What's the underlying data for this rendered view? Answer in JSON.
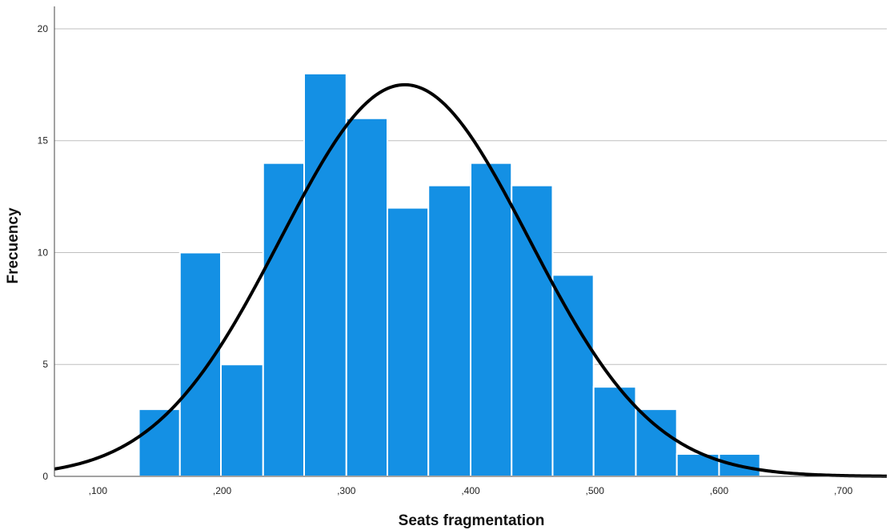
{
  "chart_data": {
    "type": "bar",
    "subtype": "histogram-with-normal-curve",
    "title": "",
    "xlabel": "Seats fragmentation",
    "ylabel": "Frecuency",
    "xlim": [
      0.065,
      0.735
    ],
    "ylim": [
      0,
      21
    ],
    "x_ticks": [
      {
        "value": 0.1,
        "label": ",100"
      },
      {
        "value": 0.2,
        "label": ",200"
      },
      {
        "value": 0.3,
        "label": ",300"
      },
      {
        "value": 0.4,
        "label": ",400"
      },
      {
        "value": 0.5,
        "label": ",500"
      },
      {
        "value": 0.6,
        "label": ",600"
      },
      {
        "value": 0.7,
        "label": ",700"
      }
    ],
    "y_ticks": [
      {
        "value": 0,
        "label": "0"
      },
      {
        "value": 5,
        "label": "5"
      },
      {
        "value": 10,
        "label": "10"
      },
      {
        "value": 15,
        "label": "15"
      },
      {
        "value": 20,
        "label": "20"
      }
    ],
    "grid": "horizontal",
    "bins": [
      {
        "start": 0.133,
        "end": 0.166,
        "count": 3
      },
      {
        "start": 0.166,
        "end": 0.199,
        "count": 10
      },
      {
        "start": 0.199,
        "end": 0.233,
        "count": 5
      },
      {
        "start": 0.233,
        "end": 0.266,
        "count": 14
      },
      {
        "start": 0.266,
        "end": 0.3,
        "count": 18
      },
      {
        "start": 0.3,
        "end": 0.333,
        "count": 16
      },
      {
        "start": 0.333,
        "end": 0.366,
        "count": 12
      },
      {
        "start": 0.366,
        "end": 0.4,
        "count": 13
      },
      {
        "start": 0.4,
        "end": 0.433,
        "count": 14
      },
      {
        "start": 0.433,
        "end": 0.466,
        "count": 13
      },
      {
        "start": 0.466,
        "end": 0.499,
        "count": 9
      },
      {
        "start": 0.499,
        "end": 0.533,
        "count": 4
      },
      {
        "start": 0.533,
        "end": 0.566,
        "count": 3
      },
      {
        "start": 0.566,
        "end": 0.6,
        "count": 1
      },
      {
        "start": 0.6,
        "end": 0.633,
        "count": 1
      }
    ],
    "normal_curve": {
      "mean": 0.347,
      "sd": 0.1,
      "peak": 17.5
    },
    "colors": {
      "bar": "#1490E4",
      "bar_edge": "#ffffff",
      "curve": "#000000",
      "grid": "#bfbfbf",
      "axis": "#444444"
    }
  }
}
